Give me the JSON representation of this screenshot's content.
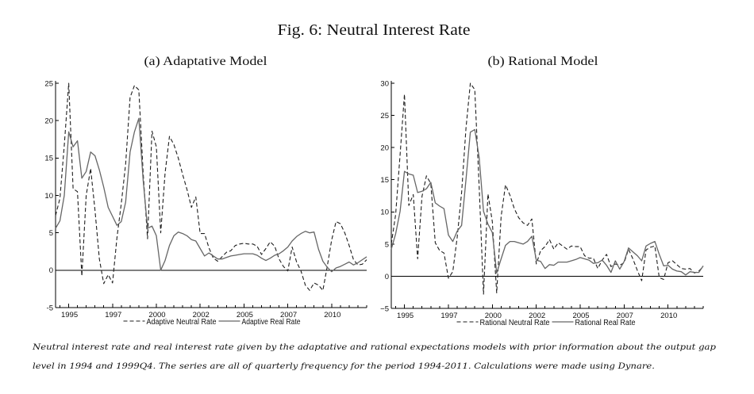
{
  "figure": {
    "title": "Fig. 6: Neutral Interest Rate",
    "caption": {
      "line1": "Neutral interest rate and real interest rate given by the adaptative and rational expectations models with prior information about the output gap",
      "line2": "level in 1994 and 1999Q4. The series are all of quarterly frequency for the period 1994-2011. Calculations were made using Dynare."
    }
  },
  "style": {
    "neutral_color": "#1e1e1e",
    "real_color": "#666666",
    "axis_color": "#000000"
  },
  "chart_data": [
    {
      "type": "line",
      "title": "(a) Adaptative Model",
      "xlabel": "",
      "ylabel": "",
      "frequency": "quarterly",
      "x": [
        "1994Q1",
        "1994Q2",
        "1994Q3",
        "1994Q4",
        "1995Q1",
        "1995Q2",
        "1995Q3",
        "1995Q4",
        "1996Q1",
        "1996Q2",
        "1996Q3",
        "1996Q4",
        "1997Q1",
        "1997Q2",
        "1997Q3",
        "1997Q4",
        "1998Q1",
        "1998Q2",
        "1998Q3",
        "1998Q4",
        "1999Q1",
        "1999Q2",
        "1999Q3",
        "1999Q4",
        "2000Q1",
        "2000Q2",
        "2000Q3",
        "2000Q4",
        "2001Q1",
        "2001Q2",
        "2001Q3",
        "2001Q4",
        "2002Q1",
        "2002Q2",
        "2002Q3",
        "2002Q4",
        "2003Q1",
        "2003Q2",
        "2003Q3",
        "2003Q4",
        "2004Q1",
        "2004Q2",
        "2004Q3",
        "2004Q4",
        "2005Q1",
        "2005Q2",
        "2005Q3",
        "2005Q4",
        "2006Q1",
        "2006Q2",
        "2006Q3",
        "2006Q4",
        "2007Q1",
        "2007Q2",
        "2007Q3",
        "2007Q4",
        "2008Q1",
        "2008Q2",
        "2008Q3",
        "2008Q4",
        "2009Q1",
        "2009Q2",
        "2009Q3",
        "2009Q4",
        "2010Q1",
        "2010Q2",
        "2010Q3",
        "2010Q4",
        "2011Q1",
        "2011Q2",
        "2011Q3",
        "2011Q4"
      ],
      "ylim": [
        -5,
        25
      ],
      "yticks": [
        -5,
        0,
        5,
        10,
        15,
        20,
        25
      ],
      "ytick_labels": [
        "-5",
        "0",
        "5",
        "10",
        "15",
        "20",
        "25"
      ],
      "xticks": [
        {
          "label": "1995",
          "at": "1994Q4"
        },
        {
          "label": "1997",
          "at": "1997Q2"
        },
        {
          "label": "2000",
          "at": "1999Q4"
        },
        {
          "label": "2002",
          "at": "2002Q2"
        },
        {
          "label": "2005",
          "at": "2004Q4"
        },
        {
          "label": "2007",
          "at": "2007Q2"
        },
        {
          "label": "2010",
          "at": "2009Q4"
        }
      ],
      "reference_line": 0,
      "grid": false,
      "legend": {
        "position": "bottom-center"
      },
      "series": [
        {
          "name": "Adaptive Neutral Rate",
          "style": "dashed",
          "values": [
            7.3,
            9.6,
            16.7,
            25.0,
            10.9,
            10.5,
            -0.8,
            10.0,
            13.6,
            8.0,
            1.5,
            -1.8,
            -0.6,
            -1.7,
            4.3,
            8.9,
            14.2,
            23.1,
            24.7,
            24.1,
            13.0,
            4.2,
            18.6,
            16.5,
            5.0,
            13.0,
            17.9,
            16.8,
            15.0,
            12.8,
            10.8,
            8.4,
            9.8,
            4.9,
            4.9,
            3.0,
            1.6,
            1.2,
            1.8,
            2.4,
            2.6,
            3.3,
            3.5,
            3.6,
            3.5,
            3.5,
            3.2,
            2.1,
            2.9,
            3.8,
            3.2,
            1.5,
            0.5,
            -0.1,
            3.1,
            1.1,
            -0.1,
            -2.0,
            -2.7,
            -1.7,
            -2.0,
            -2.7,
            0.5,
            4.0,
            6.5,
            6.2,
            5.0,
            3.3,
            1.4,
            0.7,
            0.8,
            1.4
          ]
        },
        {
          "name": "Adaptive Real Rate",
          "style": "solid",
          "values": [
            5.6,
            6.6,
            10.0,
            18.5,
            16.5,
            17.3,
            12.3,
            13.2,
            15.8,
            15.3,
            13.4,
            11.1,
            8.4,
            7.2,
            6.0,
            6.5,
            9.1,
            15.8,
            18.5,
            20.3,
            12.0,
            5.6,
            5.9,
            4.6,
            0.0,
            1.3,
            3.3,
            4.6,
            5.1,
            4.9,
            4.6,
            4.1,
            3.9,
            2.9,
            1.9,
            2.3,
            1.9,
            1.5,
            1.5,
            1.7,
            1.9,
            2.0,
            2.1,
            2.2,
            2.2,
            2.2,
            2.0,
            1.6,
            1.3,
            1.6,
            2.0,
            2.2,
            2.6,
            3.1,
            3.9,
            4.5,
            4.9,
            5.2,
            5.0,
            5.1,
            2.8,
            1.2,
            0.4,
            -0.2,
            0.3,
            0.5,
            0.8,
            1.1,
            0.7,
            1.0,
            1.4,
            1.8
          ]
        }
      ]
    },
    {
      "type": "line",
      "title": "(b) Rational Model",
      "xlabel": "",
      "ylabel": "",
      "frequency": "quarterly",
      "x": [
        "1994Q1",
        "1994Q2",
        "1994Q3",
        "1994Q4",
        "1995Q1",
        "1995Q2",
        "1995Q3",
        "1995Q4",
        "1996Q1",
        "1996Q2",
        "1996Q3",
        "1996Q4",
        "1997Q1",
        "1997Q2",
        "1997Q3",
        "1997Q4",
        "1998Q1",
        "1998Q2",
        "1998Q3",
        "1998Q4",
        "1999Q1",
        "1999Q2",
        "1999Q3",
        "1999Q4",
        "2000Q1",
        "2000Q2",
        "2000Q3",
        "2000Q4",
        "2001Q1",
        "2001Q2",
        "2001Q3",
        "2001Q4",
        "2002Q1",
        "2002Q2",
        "2002Q3",
        "2002Q4",
        "2003Q1",
        "2003Q2",
        "2003Q3",
        "2003Q4",
        "2004Q1",
        "2004Q2",
        "2004Q3",
        "2004Q4",
        "2005Q1",
        "2005Q2",
        "2005Q3",
        "2005Q4",
        "2006Q1",
        "2006Q2",
        "2006Q3",
        "2006Q4",
        "2007Q1",
        "2007Q2",
        "2007Q3",
        "2007Q4",
        "2008Q1",
        "2008Q2",
        "2008Q3",
        "2008Q4",
        "2009Q1",
        "2009Q2",
        "2009Q3",
        "2009Q4",
        "2010Q1",
        "2010Q2",
        "2010Q3",
        "2010Q4",
        "2011Q1",
        "2011Q2",
        "2011Q3",
        "2011Q4"
      ],
      "ylim": [
        -5,
        30
      ],
      "yticks": [
        -5,
        0,
        5,
        10,
        15,
        20,
        25,
        30
      ],
      "ytick_labels": [
        "−5",
        "0",
        "5",
        "10",
        "15",
        "20",
        "25",
        "30"
      ],
      "xticks": [
        {
          "label": "1995",
          "at": "1994Q4"
        },
        {
          "label": "1997",
          "at": "1997Q2"
        },
        {
          "label": "2000",
          "at": "1999Q4"
        },
        {
          "label": "2002",
          "at": "2002Q2"
        },
        {
          "label": "2005",
          "at": "2004Q4"
        },
        {
          "label": "2007",
          "at": "2007Q2"
        },
        {
          "label": "2010",
          "at": "2009Q4"
        }
      ],
      "reference_line": 0,
      "grid": false,
      "legend": {
        "position": "bottom-center"
      },
      "series": [
        {
          "name": "Rational Neutral Rate",
          "style": "dashed",
          "values": [
            5.0,
            9.6,
            18.9,
            28.3,
            11.0,
            12.7,
            2.7,
            12.4,
            15.6,
            14.4,
            5.2,
            4.0,
            3.6,
            -0.3,
            0.7,
            6.0,
            13.0,
            23.0,
            30.0,
            29.0,
            14.0,
            -2.8,
            12.8,
            8.5,
            -2.6,
            9.3,
            14.2,
            12.6,
            10.5,
            9.1,
            8.3,
            7.9,
            8.9,
            1.9,
            4.0,
            4.6,
            5.7,
            4.2,
            5.2,
            4.7,
            4.2,
            4.7,
            4.6,
            4.6,
            3.2,
            2.8,
            2.8,
            1.2,
            2.5,
            3.4,
            1.5,
            1.9,
            1.7,
            2.1,
            4.2,
            2.7,
            0.9,
            -0.7,
            4.1,
            4.5,
            4.7,
            -0.2,
            -0.5,
            2.1,
            2.4,
            1.8,
            1.2,
            1.1,
            1.2,
            0.5,
            0.8,
            1.5
          ]
        },
        {
          "name": "Rational Real Rate",
          "style": "solid",
          "values": [
            4.2,
            6.6,
            10.1,
            16.3,
            15.9,
            15.7,
            13.0,
            13.2,
            13.6,
            14.6,
            11.4,
            10.9,
            10.5,
            6.4,
            5.4,
            7.0,
            7.9,
            15.0,
            22.4,
            22.8,
            18.5,
            10.1,
            8.1,
            6.8,
            0.5,
            2.7,
            4.8,
            5.4,
            5.4,
            5.2,
            5.0,
            5.4,
            6.2,
            2.5,
            2.3,
            1.2,
            1.8,
            1.7,
            2.2,
            2.2,
            2.2,
            2.4,
            2.6,
            2.9,
            2.7,
            2.5,
            2.0,
            2.1,
            2.5,
            1.7,
            0.6,
            2.4,
            1.1,
            2.3,
            4.4,
            3.8,
            3.2,
            2.4,
            4.7,
            5.1,
            5.4,
            3.4,
            1.6,
            1.7,
            1.1,
            0.8,
            0.7,
            0.2,
            0.7,
            0.6,
            0.6,
            1.6
          ]
        }
      ]
    }
  ]
}
